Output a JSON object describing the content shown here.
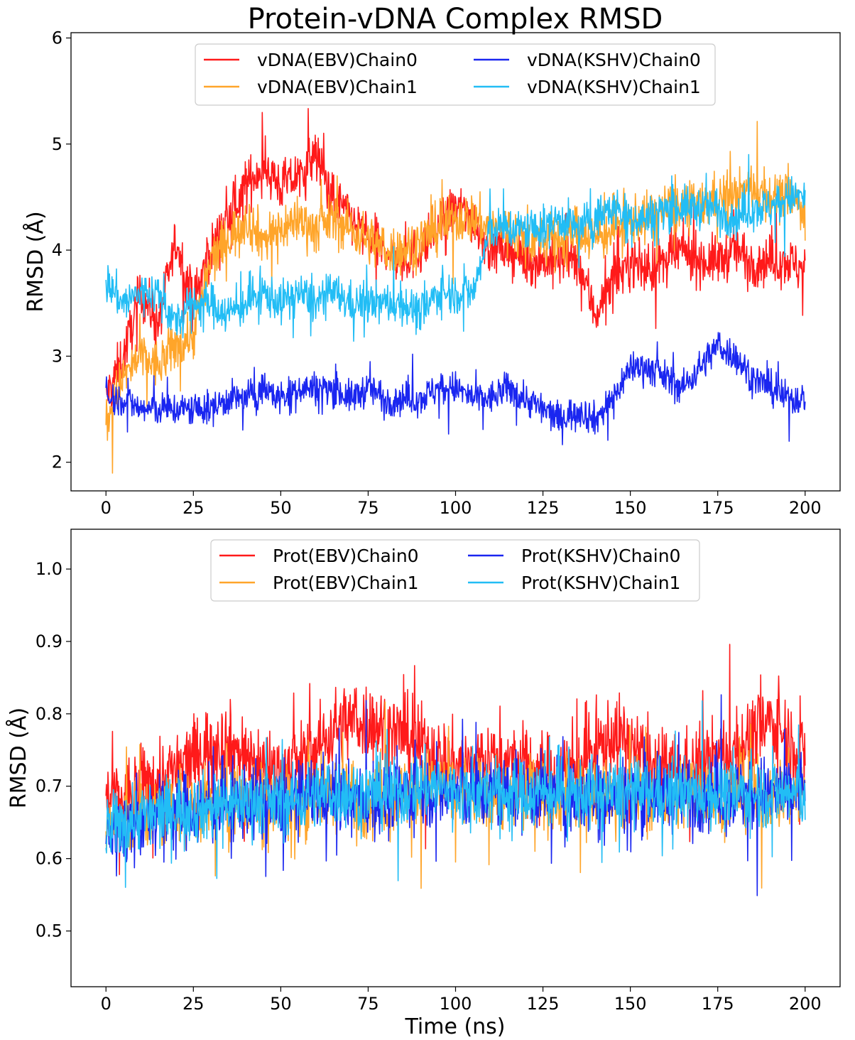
{
  "figure": {
    "title": "Protein-vDNA Complex RMSD",
    "xlabel": "Time (ns)",
    "colors": {
      "EBV_chain0": "#ff1a1a",
      "EBV_chain1": "#ffa52a",
      "KSHV_chain0": "#1a26f0",
      "KSHV_chain1": "#22bdf5"
    }
  },
  "chart_data": [
    {
      "type": "line",
      "title": "Protein-vDNA Complex RMSD",
      "xlabel": "",
      "ylabel": "RMSD (Å)",
      "xlim": [
        -10,
        210
      ],
      "ylim": [
        1.73,
        6.05
      ],
      "xticks": [
        0,
        25,
        50,
        75,
        100,
        125,
        150,
        175,
        200
      ],
      "yticks": [
        2,
        3,
        4,
        5,
        6
      ],
      "grid": false,
      "legend": {
        "placement": "top-center",
        "columns": 2
      },
      "x": [
        0,
        5,
        10,
        15,
        20,
        25,
        30,
        35,
        40,
        45,
        50,
        55,
        60,
        65,
        70,
        75,
        80,
        85,
        90,
        95,
        100,
        105,
        110,
        115,
        120,
        125,
        130,
        135,
        140,
        145,
        150,
        155,
        160,
        165,
        170,
        175,
        180,
        185,
        190,
        195,
        200
      ],
      "series": [
        {
          "name": "vDNA(EBV)Chain0",
          "color": "#ff1a1a",
          "values": [
            2.6,
            3.0,
            3.6,
            3.3,
            4.1,
            3.5,
            4.0,
            4.3,
            4.6,
            4.8,
            4.6,
            4.7,
            4.9,
            4.5,
            4.3,
            4.1,
            4.0,
            3.9,
            4.0,
            4.2,
            4.4,
            4.3,
            4.0,
            4.0,
            3.9,
            3.9,
            3.9,
            3.9,
            3.4,
            3.7,
            3.9,
            3.8,
            3.9,
            4.0,
            3.9,
            3.9,
            4.0,
            3.9,
            3.9,
            3.9,
            3.8
          ],
          "noise": 0.3
        },
        {
          "name": "vDNA(EBV)Chain1",
          "color": "#ffa52a",
          "values": [
            2.4,
            2.8,
            3.0,
            2.9,
            3.1,
            3.2,
            3.9,
            4.1,
            4.3,
            4.1,
            4.2,
            4.3,
            4.2,
            4.3,
            4.2,
            4.1,
            4.0,
            4.0,
            4.1,
            4.2,
            4.3,
            4.3,
            4.2,
            4.2,
            4.1,
            4.1,
            4.1,
            4.2,
            4.1,
            4.2,
            4.3,
            4.3,
            4.4,
            4.4,
            4.4,
            4.5,
            4.5,
            4.6,
            4.5,
            4.5,
            4.4
          ],
          "noise": 0.3
        },
        {
          "name": "vDNA(KSHV)Chain0",
          "color": "#1a26f0",
          "values": [
            2.6,
            2.6,
            2.5,
            2.5,
            2.5,
            2.5,
            2.5,
            2.6,
            2.6,
            2.7,
            2.6,
            2.7,
            2.7,
            2.7,
            2.6,
            2.7,
            2.6,
            2.6,
            2.6,
            2.7,
            2.7,
            2.6,
            2.6,
            2.7,
            2.6,
            2.5,
            2.4,
            2.5,
            2.4,
            2.6,
            2.9,
            2.9,
            2.8,
            2.7,
            2.9,
            3.1,
            3.0,
            2.8,
            2.7,
            2.6,
            2.6
          ],
          "noise": 0.2
        },
        {
          "name": "vDNA(KSHV)Chain1",
          "color": "#22bdf5",
          "values": [
            3.7,
            3.5,
            3.6,
            3.6,
            3.3,
            3.5,
            3.5,
            3.4,
            3.5,
            3.6,
            3.5,
            3.6,
            3.5,
            3.6,
            3.5,
            3.5,
            3.5,
            3.5,
            3.4,
            3.6,
            3.6,
            3.6,
            4.2,
            4.2,
            4.2,
            4.2,
            4.3,
            4.2,
            4.3,
            4.4,
            4.3,
            4.3,
            4.4,
            4.4,
            4.4,
            4.4,
            4.3,
            4.4,
            4.4,
            4.5,
            4.5
          ],
          "noise": 0.25
        }
      ]
    },
    {
      "type": "line",
      "title": "",
      "xlabel": "Time (ns)",
      "ylabel": "RMSD (Å)",
      "xlim": [
        -10,
        210
      ],
      "ylim": [
        0.423,
        1.055
      ],
      "xticks": [
        0,
        25,
        50,
        75,
        100,
        125,
        150,
        175,
        200
      ],
      "yticks": [
        0.5,
        0.6,
        0.7,
        0.8,
        0.9,
        1.0
      ],
      "grid": false,
      "legend": {
        "placement": "top-center",
        "columns": 2
      },
      "x": [
        0,
        5,
        10,
        15,
        20,
        25,
        30,
        35,
        40,
        45,
        50,
        55,
        60,
        65,
        70,
        75,
        80,
        85,
        90,
        95,
        100,
        105,
        110,
        115,
        120,
        125,
        130,
        135,
        140,
        145,
        150,
        155,
        160,
        165,
        170,
        175,
        180,
        185,
        190,
        195,
        200
      ],
      "series": [
        {
          "name": "Prot(EBV)Chain0",
          "color": "#ff1a1a",
          "values": [
            0.68,
            0.68,
            0.7,
            0.71,
            0.72,
            0.74,
            0.76,
            0.76,
            0.74,
            0.73,
            0.72,
            0.73,
            0.75,
            0.78,
            0.79,
            0.79,
            0.78,
            0.77,
            0.76,
            0.74,
            0.73,
            0.73,
            0.74,
            0.73,
            0.73,
            0.72,
            0.72,
            0.73,
            0.75,
            0.77,
            0.76,
            0.73,
            0.72,
            0.72,
            0.73,
            0.74,
            0.75,
            0.77,
            0.79,
            0.77,
            0.74
          ],
          "noise": 0.07
        },
        {
          "name": "Prot(EBV)Chain1",
          "color": "#ffa52a",
          "values": [
            0.64,
            0.65,
            0.66,
            0.66,
            0.67,
            0.67,
            0.67,
            0.68,
            0.68,
            0.68,
            0.68,
            0.68,
            0.69,
            0.69,
            0.69,
            0.68,
            0.68,
            0.69,
            0.7,
            0.7,
            0.69,
            0.69,
            0.69,
            0.69,
            0.69,
            0.69,
            0.69,
            0.69,
            0.69,
            0.69,
            0.69,
            0.69,
            0.69,
            0.69,
            0.69,
            0.69,
            0.69,
            0.69,
            0.69,
            0.69,
            0.69
          ],
          "noise": 0.065
        },
        {
          "name": "Prot(KSHV)Chain0",
          "color": "#1a26f0",
          "values": [
            0.63,
            0.64,
            0.65,
            0.66,
            0.67,
            0.67,
            0.67,
            0.67,
            0.68,
            0.68,
            0.67,
            0.68,
            0.69,
            0.69,
            0.68,
            0.68,
            0.68,
            0.69,
            0.7,
            0.69,
            0.69,
            0.69,
            0.69,
            0.69,
            0.69,
            0.69,
            0.69,
            0.68,
            0.69,
            0.69,
            0.69,
            0.69,
            0.69,
            0.69,
            0.69,
            0.69,
            0.69,
            0.69,
            0.69,
            0.69,
            0.7
          ],
          "noise": 0.065
        },
        {
          "name": "Prot(KSHV)Chain1",
          "color": "#22bdf5",
          "values": [
            0.64,
            0.65,
            0.66,
            0.66,
            0.67,
            0.67,
            0.67,
            0.68,
            0.68,
            0.68,
            0.68,
            0.68,
            0.69,
            0.69,
            0.69,
            0.69,
            0.69,
            0.69,
            0.7,
            0.7,
            0.69,
            0.69,
            0.69,
            0.69,
            0.69,
            0.69,
            0.69,
            0.69,
            0.69,
            0.69,
            0.69,
            0.69,
            0.69,
            0.69,
            0.69,
            0.69,
            0.69,
            0.69,
            0.69,
            0.69,
            0.69
          ],
          "noise": 0.06
        }
      ]
    }
  ]
}
